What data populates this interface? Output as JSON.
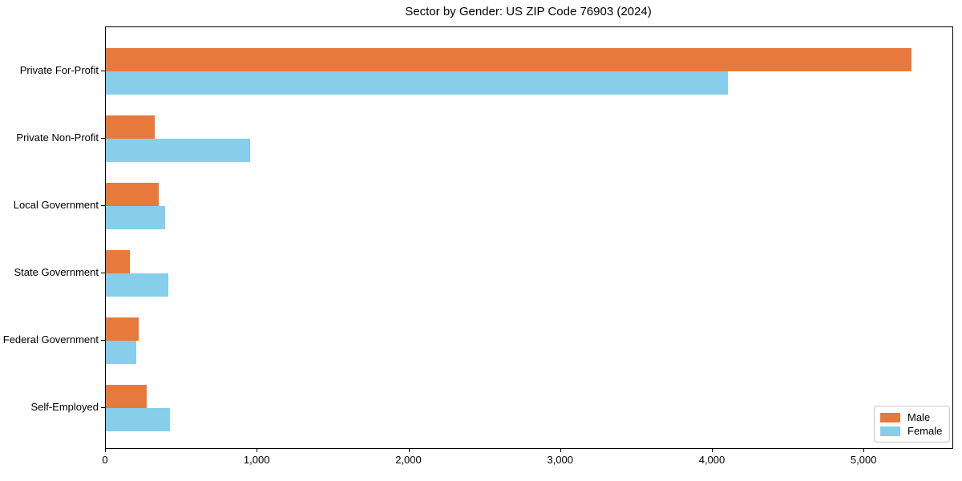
{
  "title": "Sector by Gender: US ZIP Code 76903 (2024)",
  "chart_data": {
    "type": "bar",
    "orientation": "horizontal",
    "title": "Sector by Gender: US ZIP Code 76903 (2024)",
    "xlabel": "",
    "ylabel": "",
    "categories": [
      "Private For-Profit",
      "Private Non-Profit",
      "Local Government",
      "State Government",
      "Federal Government",
      "Self-Employed"
    ],
    "series": [
      {
        "name": "Male",
        "color": "#E8793C",
        "values": [
          5310,
          320,
          350,
          160,
          215,
          270
        ]
      },
      {
        "name": "Female",
        "color": "#87CEEB",
        "values": [
          4100,
          950,
          390,
          410,
          200,
          425
        ]
      }
    ],
    "xlim": [
      0,
      5580
    ],
    "x_ticks": [
      0,
      1000,
      2000,
      3000,
      4000,
      5000
    ],
    "x_tick_labels": [
      "0",
      "1,000",
      "2,000",
      "3,000",
      "4,000",
      "5,000"
    ],
    "grid": false,
    "legend_position": "lower right"
  },
  "legend": {
    "items": [
      {
        "label": "Male",
        "color": "#E8793C"
      },
      {
        "label": "Female",
        "color": "#87CEEB"
      }
    ]
  }
}
